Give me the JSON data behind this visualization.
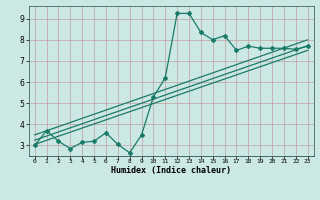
{
  "xlabel": "Humidex (Indice chaleur)",
  "bg_color": "#cce8e4",
  "grid_color": "#c0a0a0",
  "line_color": "#1a7a6a",
  "xlim": [
    -0.5,
    23.5
  ],
  "ylim": [
    2.5,
    9.6
  ],
  "xticks": [
    0,
    1,
    2,
    3,
    4,
    5,
    6,
    7,
    8,
    9,
    10,
    11,
    12,
    13,
    14,
    15,
    16,
    17,
    18,
    19,
    20,
    21,
    22,
    23
  ],
  "yticks": [
    3,
    4,
    5,
    6,
    7,
    8,
    9
  ],
  "data_x": [
    0,
    1,
    2,
    3,
    4,
    5,
    6,
    7,
    8,
    9,
    10,
    11,
    12,
    13,
    14,
    15,
    16,
    17,
    18,
    19,
    20,
    21,
    22,
    23
  ],
  "data_y": [
    3.0,
    3.7,
    3.2,
    2.85,
    3.15,
    3.2,
    3.6,
    3.05,
    2.65,
    3.5,
    5.3,
    6.2,
    9.25,
    9.25,
    8.35,
    8.0,
    8.2,
    7.5,
    7.7,
    7.6,
    7.6,
    7.6,
    7.55,
    7.7
  ],
  "line1_x": [
    0,
    23
  ],
  "line1_y": [
    3.05,
    7.5
  ],
  "line2_x": [
    0,
    23
  ],
  "line2_y": [
    3.25,
    7.72
  ],
  "line3_x": [
    0,
    23
  ],
  "line3_y": [
    3.5,
    8.0
  ]
}
